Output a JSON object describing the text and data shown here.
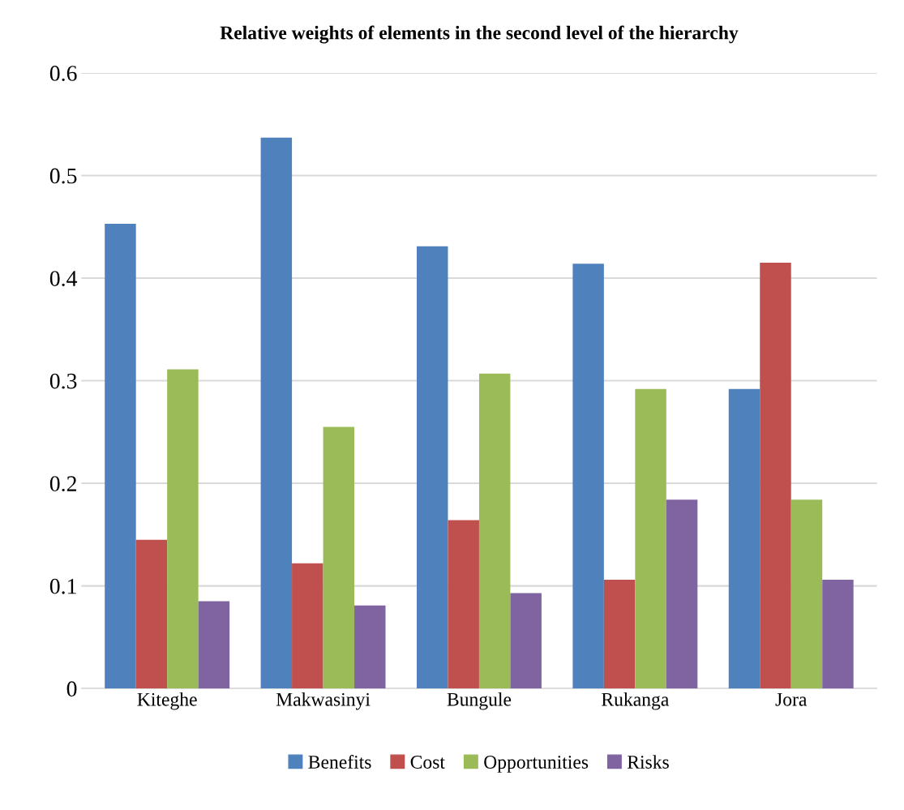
{
  "chart_data": {
    "type": "bar",
    "title": "Relative weights of elements in the second level of the hierarchy",
    "categories": [
      "Kiteghe",
      "Makwasinyi",
      "Bungule",
      "Rukanga",
      "Jora"
    ],
    "series": [
      {
        "name": "Benefits",
        "color": "#4f81bd",
        "values": [
          0.453,
          0.537,
          0.431,
          0.414,
          0.292
        ]
      },
      {
        "name": "Cost",
        "color": "#c0504d",
        "values": [
          0.145,
          0.122,
          0.164,
          0.106,
          0.415
        ]
      },
      {
        "name": "Opportunities",
        "color": "#9bbb59",
        "values": [
          0.311,
          0.255,
          0.307,
          0.292,
          0.184
        ]
      },
      {
        "name": "Risks",
        "color": "#8064a2",
        "values": [
          0.085,
          0.081,
          0.093,
          0.184,
          0.106
        ]
      }
    ],
    "ylim": [
      0,
      0.6
    ],
    "yticks": [
      0,
      0.1,
      0.2,
      0.3,
      0.4,
      0.5,
      0.6
    ],
    "grid": "y",
    "legend": "bottom"
  }
}
